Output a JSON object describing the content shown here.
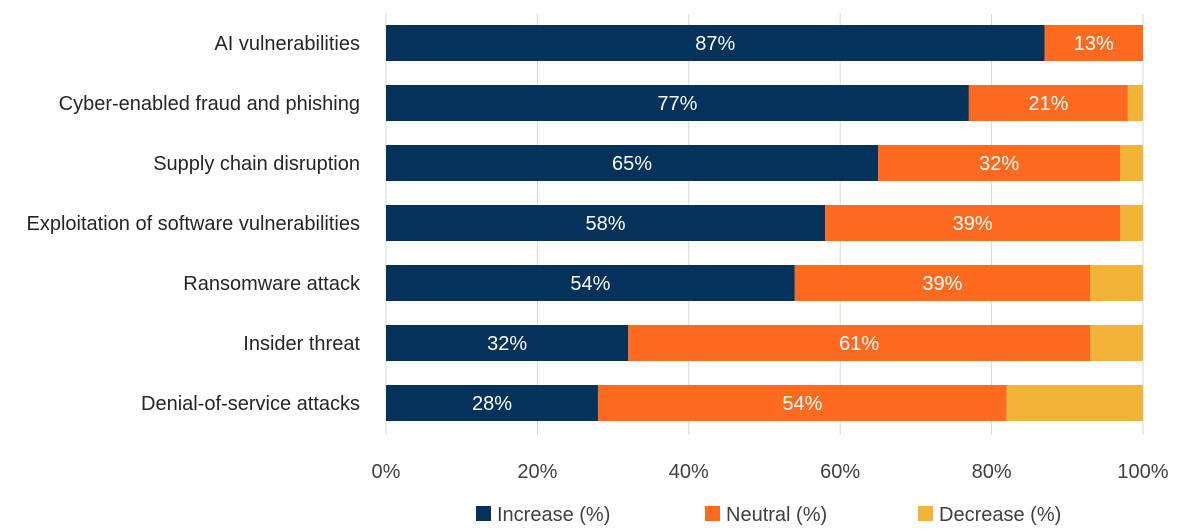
{
  "chart_data": {
    "type": "bar",
    "orientation": "horizontal",
    "stacked": true,
    "title": "",
    "xlabel": "",
    "ylabel": "",
    "categories": [
      "AI vulnerabilities",
      "Cyber-enabled fraud and phishing",
      "Supply chain disruption",
      "Exploitation of software vulnerabilities",
      "Ransomware attack",
      "Insider threat",
      "Denial-of-service attacks"
    ],
    "series": [
      {
        "name": "Increase (%)",
        "color": "#05325a",
        "values": [
          87,
          77,
          65,
          58,
          54,
          32,
          28
        ],
        "labels": [
          "87%",
          "77%",
          "65%",
          "58%",
          "54%",
          "32%",
          "28%"
        ]
      },
      {
        "name": "Neutral (%)",
        "color": "#ff6a21",
        "values": [
          13,
          21,
          32,
          39,
          39,
          61,
          54
        ],
        "labels": [
          "13%",
          "21%",
          "32%",
          "39%",
          "39%",
          "61%",
          "54%"
        ]
      },
      {
        "name": "Decrease (%)",
        "color": "#f1b436",
        "values": [
          0,
          2,
          3,
          3,
          7,
          7,
          18
        ],
        "labels": [
          "",
          "",
          "",
          "",
          "",
          "",
          ""
        ]
      }
    ],
    "xlim": [
      0,
      100
    ],
    "xticks": [
      "0%",
      "20%",
      "40%",
      "60%",
      "80%",
      "100%"
    ],
    "grid": true,
    "legend_position": "bottom"
  }
}
